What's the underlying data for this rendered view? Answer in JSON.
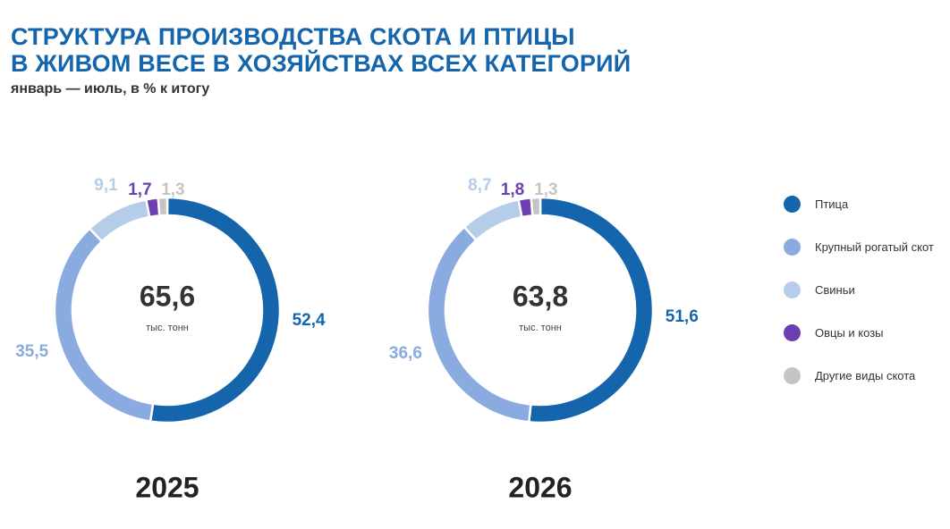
{
  "header": {
    "title_line1": "СТРУКТУРА ПРОИЗВОДСТВА СКОТА И ПТИЦЫ",
    "title_line2": "В ЖИВОМ ВЕСЕ В ХОЗЯЙСТВАХ ВСЕХ КАТЕГОРИЙ",
    "subtitle": "январь — июль, в % к итогу"
  },
  "colors": {
    "Птица": "#1565ad",
    "Крупный рогатый скот": "#8aabe0",
    "Свиньи": "#b6cdea",
    "Овцы и козы": "#6a3fb2",
    "Другие виды скота": "#c4c4c4"
  },
  "legend": [
    {
      "label": "Птица",
      "color": "#1565ad"
    },
    {
      "label": "Крупный рогатый скот",
      "color": "#8aabe0"
    },
    {
      "label": "Свиньи",
      "color": "#b6cdea"
    },
    {
      "label": "Овцы и козы",
      "color": "#6a3fb2"
    },
    {
      "label": "Другие виды скота",
      "color": "#c4c4c4"
    }
  ],
  "chart_data": [
    {
      "type": "pie",
      "style": "donut",
      "year_label": "2025",
      "center_value": "65,6",
      "center_unit": "тыс. тонн",
      "categories": [
        "Птица",
        "Крупный рогатый скот",
        "Свиньи",
        "Овцы и козы",
        "Другие виды скота"
      ],
      "values": [
        52.4,
        35.5,
        9.1,
        1.7,
        1.3
      ],
      "labels": [
        "52,4",
        "35,5",
        "9,1",
        "1,7",
        "1,3"
      ]
    },
    {
      "type": "pie",
      "style": "donut",
      "year_label": "2026",
      "center_value": "63,8",
      "center_unit": "тыс. тонн",
      "categories": [
        "Птица",
        "Крупный рогатый скот",
        "Свиньи",
        "Овцы и козы",
        "Другие виды скота"
      ],
      "values": [
        51.6,
        36.6,
        8.7,
        1.8,
        1.3
      ],
      "labels": [
        "51,6",
        "36,6",
        "8,7",
        "1,8",
        "1,3"
      ]
    }
  ]
}
